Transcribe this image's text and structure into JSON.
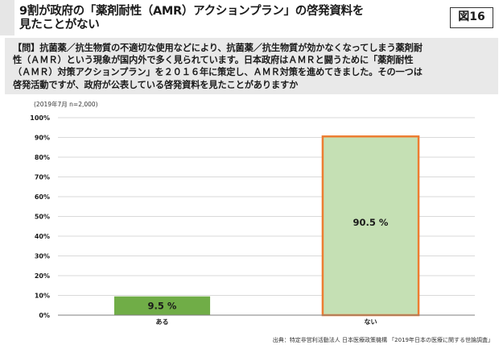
{
  "header": {
    "title_line1": "9割が政府の「薬剤耐性（AMR）アクションプラン」の啓発資料を",
    "title_line2": "見たことがない",
    "figure_label": "図16"
  },
  "question": {
    "line1": "【問】抗菌薬／抗生物質の不適切な使用などにより、抗菌薬／抗生物質が効かなくなってしまう薬剤耐",
    "line2": "性（ＡＭＲ）という現象が国内外で多く見られています。日本政府はＡＭＲと闘うために「薬剤耐性",
    "line3": "（ＡＭＲ）対策アクションプラン」を２０１６年に策定し、ＡＭＲ対策を進めてきました。その一つは",
    "line4": "啓発活動ですが、政府が公表している啓発資料を見たことがありますか"
  },
  "survey_note": "(2019年7月 n=2,000)",
  "source": "出典：特定非営利活動法人 日本医療政策機構 「2019年日本の医療に関する世論調査」",
  "colors": {
    "bar_fill_1": "#70ad47",
    "bar_fill_2": "#c5e0b4",
    "bar_outline_2": "#ed7d31",
    "grid": "#d9d9d9",
    "axis": "#7f7f7f"
  },
  "chart_data": {
    "type": "bar",
    "categories": [
      "ある",
      "ない"
    ],
    "values": [
      9.5,
      90.5
    ],
    "data_labels": [
      "9.5 %",
      "90.5 %"
    ],
    "ylim": [
      0,
      100
    ],
    "yticks": [
      0,
      10,
      20,
      30,
      40,
      50,
      60,
      70,
      80,
      90,
      100
    ],
    "ytick_labels": [
      "0%",
      "10%",
      "20%",
      "30%",
      "40%",
      "50%",
      "60%",
      "70%",
      "80%",
      "90%",
      "100%"
    ],
    "grid": true,
    "legend": "none"
  }
}
